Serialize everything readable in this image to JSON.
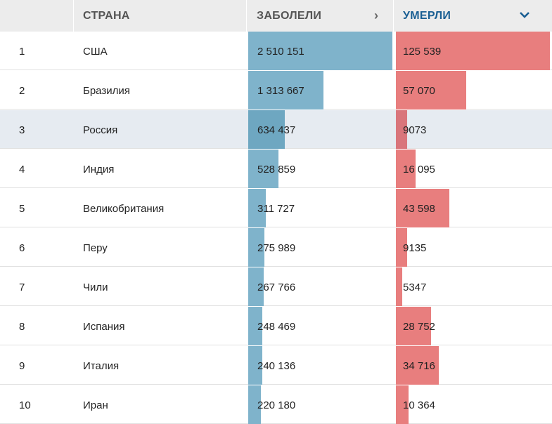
{
  "header": {
    "col_country": "СТРАНА",
    "col_cases": "ЗАБОЛЕЛИ",
    "col_deaths": "УМЕРЛИ",
    "cases_sort_icon": "chevron-right-icon",
    "deaths_sort_icon": "chevron-down-icon",
    "active_color": "#1a5f93"
  },
  "colors": {
    "cases_bar": "#7fb3cb",
    "deaths_bar": "#e87e7e",
    "highlight_row": "#e6ebf1"
  },
  "rows": [
    {
      "rank": "1",
      "country": "США",
      "cases": "2 510 151",
      "deaths": "125 539",
      "cases_num": 2510151,
      "deaths_num": 125539
    },
    {
      "rank": "2",
      "country": "Бразилия",
      "cases": "1 313 667",
      "deaths": "57 070",
      "cases_num": 1313667,
      "deaths_num": 57070
    },
    {
      "rank": "3",
      "country": "Россия",
      "cases": "634 437",
      "deaths": "9073",
      "cases_num": 634437,
      "deaths_num": 9073,
      "highlighted": true
    },
    {
      "rank": "4",
      "country": "Индия",
      "cases": "528 859",
      "deaths": "16 095",
      "cases_num": 528859,
      "deaths_num": 16095
    },
    {
      "rank": "5",
      "country": "Великобритания",
      "cases": "311 727",
      "deaths": "43 598",
      "cases_num": 311727,
      "deaths_num": 43598
    },
    {
      "rank": "6",
      "country": "Перу",
      "cases": "275 989",
      "deaths": "9135",
      "cases_num": 275989,
      "deaths_num": 9135
    },
    {
      "rank": "7",
      "country": "Чили",
      "cases": "267 766",
      "deaths": "5347",
      "cases_num": 267766,
      "deaths_num": 5347
    },
    {
      "rank": "8",
      "country": "Испания",
      "cases": "248 469",
      "deaths": "28 752",
      "cases_num": 248469,
      "deaths_num": 28752
    },
    {
      "rank": "9",
      "country": "Италия",
      "cases": "240 136",
      "deaths": "34 716",
      "cases_num": 240136,
      "deaths_num": 34716
    },
    {
      "rank": "10",
      "country": "Иран",
      "cases": "220 180",
      "deaths": "10 364",
      "cases_num": 220180,
      "deaths_num": 10364
    }
  ]
}
